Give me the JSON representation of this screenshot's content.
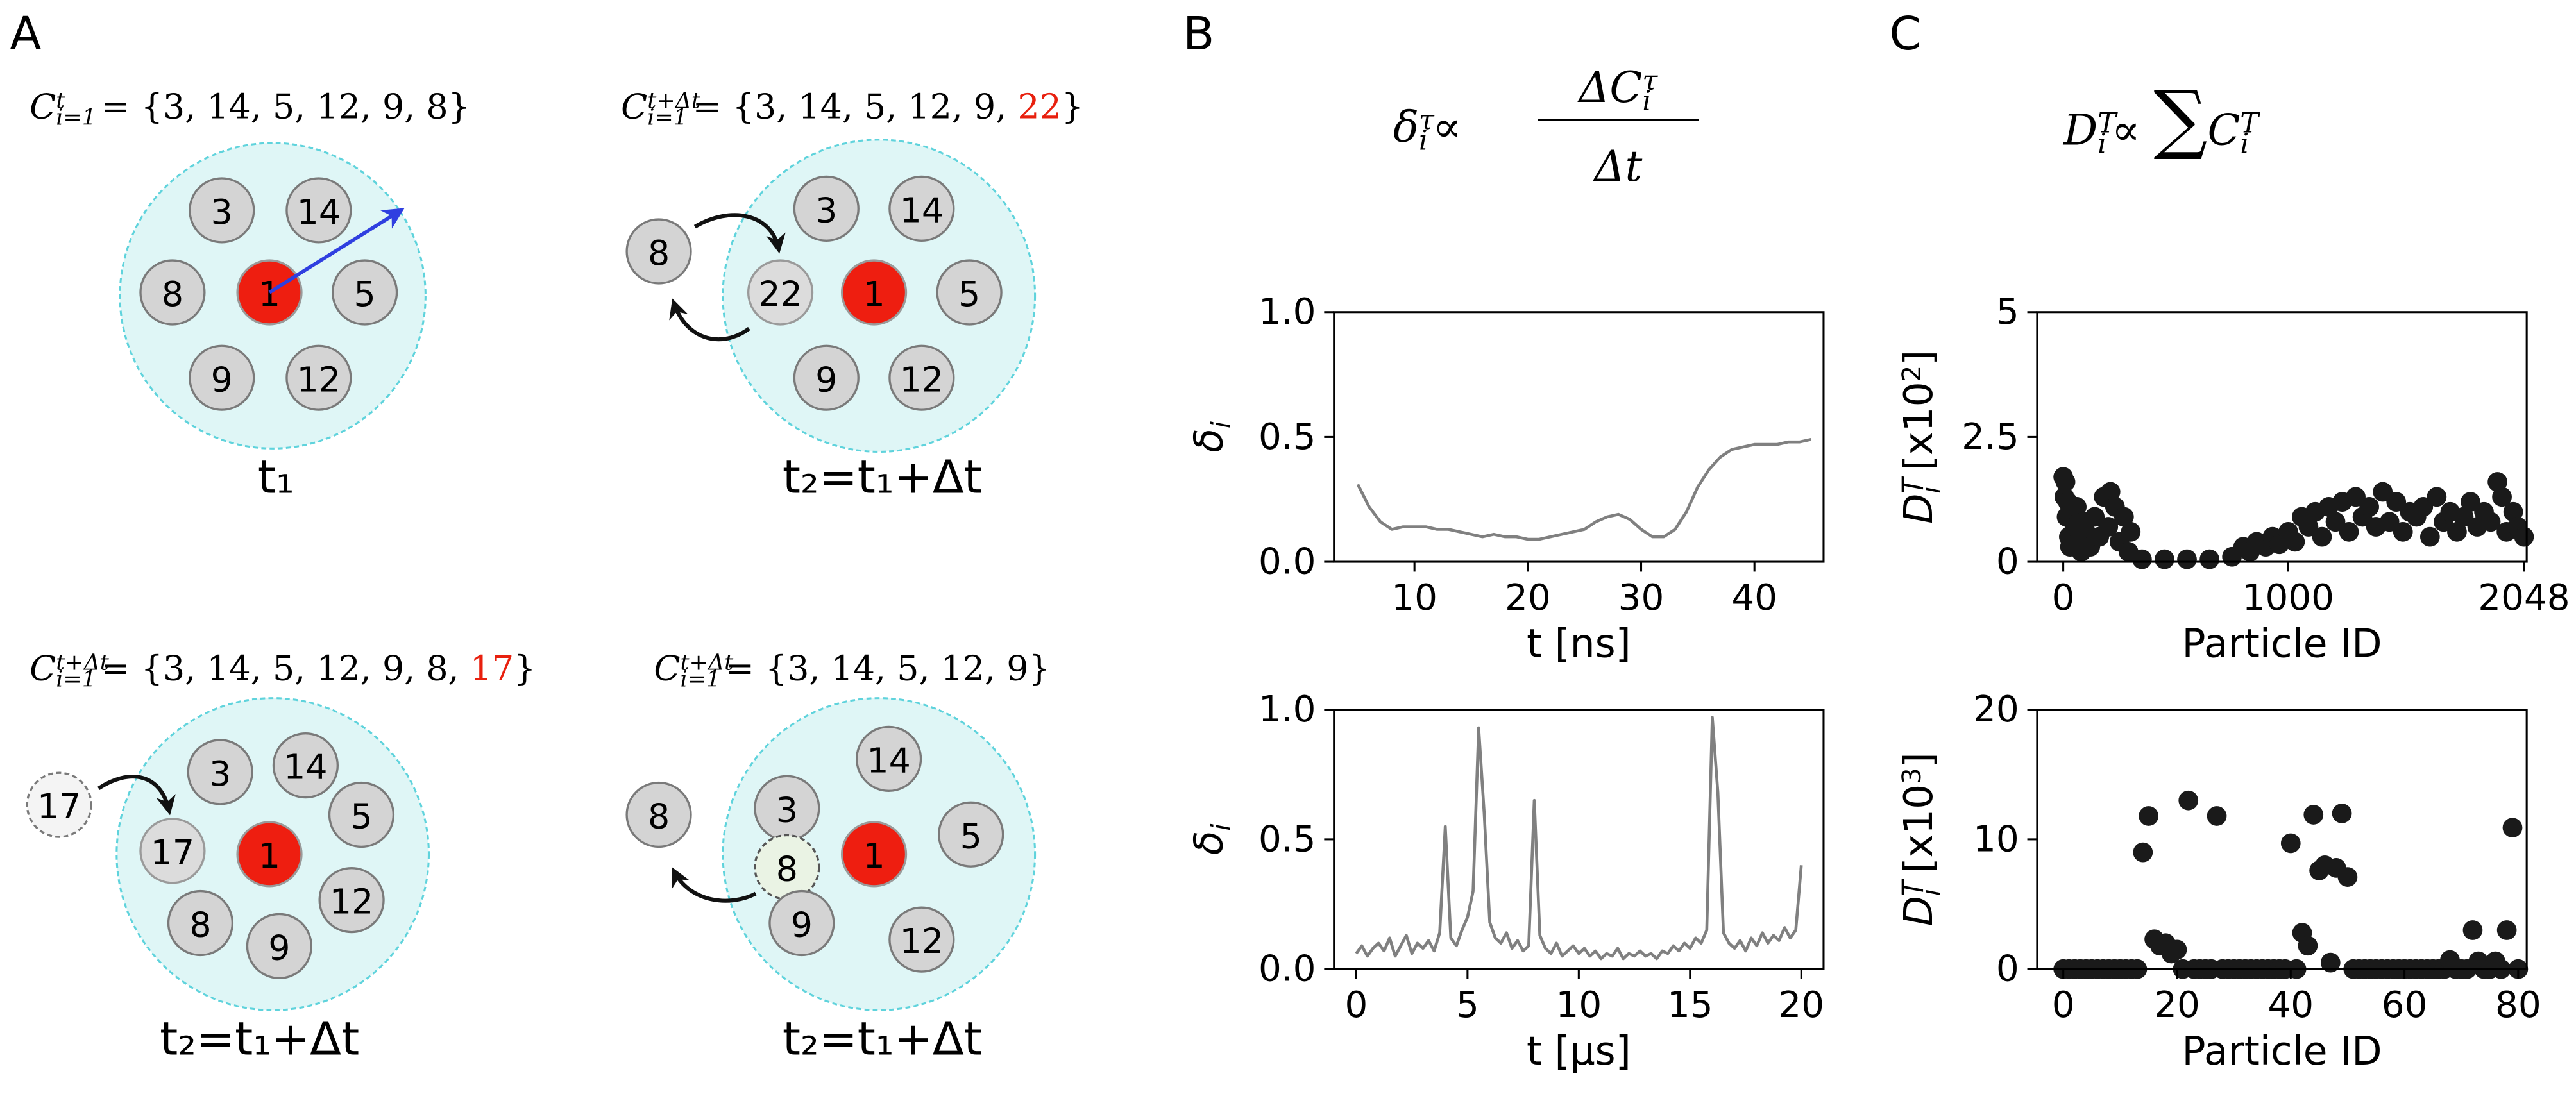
{
  "panel_labels": [
    "A",
    "B",
    "C"
  ],
  "diagrams": [
    {
      "formula": {
        "symbol": "C",
        "sup": "t",
        "sub": "i=1",
        "set": "= {3, 14, 5, 12, 9, 8}"
      },
      "nodes": [
        {
          "label": "3"
        },
        {
          "label": "14"
        },
        {
          "label": "8"
        },
        {
          "label": "1"
        },
        {
          "label": "5"
        },
        {
          "label": "9"
        },
        {
          "label": "12"
        }
      ],
      "caption": "t₁"
    },
    {
      "formula": {
        "symbol": "C",
        "sup": "t+Δt",
        "sub": "i=1",
        "set": "= {3, 14, 5, 12, 9, ",
        "highlight": "22",
        "close": "}"
      },
      "nodes": [
        {
          "label": "3"
        },
        {
          "label": "14"
        },
        {
          "label": "22"
        },
        {
          "label": "1"
        },
        {
          "label": "5"
        },
        {
          "label": "9"
        },
        {
          "label": "12"
        },
        {
          "label": "8"
        }
      ],
      "caption": "t₂=t₁+Δt"
    },
    {
      "formula": {
        "symbol": "C",
        "sup": "t+Δt",
        "sub": "i=1",
        "set": "= {3, 14, 5, 12, 9, 8, ",
        "highlight": "17",
        "close": "}"
      },
      "nodes": [
        {
          "label": "3"
        },
        {
          "label": "14"
        },
        {
          "label": "5"
        },
        {
          "label": "17"
        },
        {
          "label": "1"
        },
        {
          "label": "12"
        },
        {
          "label": "8"
        },
        {
          "label": "9"
        },
        {
          "label": "17"
        }
      ],
      "caption": "t₂=t₁+Δt"
    },
    {
      "formula": {
        "symbol": "C",
        "sup": "t+Δt",
        "sub": "i=1",
        "set": "= {3, 14, 5, 12, 9}"
      },
      "nodes": [
        {
          "label": "14"
        },
        {
          "label": "3"
        },
        {
          "label": "5"
        },
        {
          "label": "8"
        },
        {
          "label": "1"
        },
        {
          "label": "9"
        },
        {
          "label": "12"
        },
        {
          "label": "8"
        }
      ],
      "caption": "t₂=t₁+Δt"
    }
  ],
  "formulas": {
    "B": {
      "lhs": "δ",
      "lhs_sup": "τ",
      "lhs_sub": "i",
      "rel": "∝",
      "num": "ΔC",
      "num_sup": "τ",
      "num_sub": "i",
      "den": "Δt"
    },
    "C": {
      "lhs": "D",
      "lhs_sup": "T",
      "lhs_sub": "i",
      "rel": "∝",
      "op": "∑",
      "rhs": "C",
      "rhs_sup": "T",
      "rhs_sub": "i"
    }
  },
  "chart_data": [
    {
      "type": "line",
      "color": "#808080",
      "xlabel": "t [ns]",
      "ylabel": {
        "base": "δ",
        "sub": "i"
      },
      "xlim": [
        2.9,
        46.1
      ],
      "ylim": [
        0,
        1
      ],
      "xticks": [
        10,
        20,
        30,
        40
      ],
      "yticks": [
        {
          "value": 0,
          "label": "0.0"
        },
        {
          "value": 0.5,
          "label": "0.5"
        },
        {
          "value": 1,
          "label": "1.0"
        }
      ],
      "x": [
        5,
        6,
        7,
        8,
        9,
        10,
        11,
        12,
        13,
        14,
        15,
        16,
        17,
        18,
        19,
        20,
        21,
        22,
        23,
        24,
        25,
        26,
        27,
        28,
        29,
        30,
        31,
        32,
        33,
        34,
        35,
        36,
        37,
        38,
        39,
        40,
        41,
        42,
        43,
        44,
        45
      ],
      "values": [
        0.31,
        0.22,
        0.16,
        0.13,
        0.14,
        0.14,
        0.14,
        0.13,
        0.13,
        0.12,
        0.11,
        0.1,
        0.11,
        0.1,
        0.1,
        0.09,
        0.09,
        0.1,
        0.11,
        0.12,
        0.13,
        0.16,
        0.18,
        0.19,
        0.17,
        0.13,
        0.1,
        0.1,
        0.13,
        0.2,
        0.3,
        0.37,
        0.42,
        0.45,
        0.46,
        0.47,
        0.47,
        0.47,
        0.48,
        0.48,
        0.49
      ]
    },
    {
      "type": "scatter",
      "color": "#1a1a1a",
      "xlabel": "Particle ID",
      "ylabel": {
        "base": "D",
        "sup": "T",
        "sub": "i",
        "unit": " [x10",
        "exp": "2",
        "close": "]"
      },
      "xlim": [
        -116,
        2060
      ],
      "ylim": [
        0,
        5
      ],
      "xticks": [
        0,
        1000,
        2048
      ],
      "yticks": [
        0,
        2.5,
        5
      ],
      "x": [
        0,
        5,
        10,
        15,
        20,
        25,
        30,
        40,
        50,
        60,
        70,
        80,
        90,
        100,
        120,
        140,
        160,
        180,
        200,
        210,
        230,
        250,
        270,
        290,
        300,
        350,
        450,
        550,
        650,
        750,
        800,
        830,
        860,
        900,
        930,
        960,
        1000,
        1030,
        1060,
        1090,
        1120,
        1150,
        1180,
        1210,
        1240,
        1270,
        1300,
        1330,
        1360,
        1390,
        1420,
        1450,
        1480,
        1510,
        1540,
        1570,
        1600,
        1630,
        1660,
        1690,
        1720,
        1750,
        1780,
        1810,
        1840,
        1870,
        1900,
        1930,
        1950,
        1970,
        2000,
        2020,
        2048
      ],
      "values": [
        1.7,
        1.3,
        1.6,
        0.9,
        1.2,
        0.5,
        0.3,
        1.0,
        0.7,
        1.1,
        0.4,
        0.2,
        0.8,
        0.6,
        0.3,
        0.9,
        0.5,
        1.3,
        0.7,
        1.4,
        1.1,
        0.4,
        0.9,
        0.2,
        0.6,
        0.05,
        0.05,
        0.05,
        0.05,
        0.1,
        0.3,
        0.2,
        0.4,
        0.3,
        0.5,
        0.35,
        0.6,
        0.4,
        0.9,
        0.7,
        1.0,
        0.5,
        1.1,
        0.8,
        1.2,
        0.6,
        1.3,
        0.9,
        1.1,
        0.7,
        1.4,
        0.8,
        1.2,
        0.6,
        1.0,
        0.9,
        1.1,
        0.5,
        1.3,
        0.8,
        1.0,
        0.6,
        0.9,
        1.2,
        0.7,
        1.0,
        0.8,
        1.6,
        1.3,
        0.6,
        1.0,
        0.7,
        0.5
      ]
    },
    {
      "type": "line",
      "color": "#808080",
      "xlabel": "t [μs]",
      "ylabel": {
        "base": "δ",
        "sub": "i"
      },
      "xlim": [
        -1,
        21
      ],
      "ylim": [
        0,
        1
      ],
      "xticks": [
        0,
        5,
        10,
        15,
        20
      ],
      "yticks": [
        {
          "value": 0,
          "label": "0.0"
        },
        {
          "value": 0.5,
          "label": "0.5"
        },
        {
          "value": 1,
          "label": "1.0"
        }
      ],
      "x": [
        0,
        0.25,
        0.5,
        0.75,
        1,
        1.25,
        1.5,
        1.75,
        2,
        2.25,
        2.5,
        2.75,
        3,
        3.25,
        3.5,
        3.75,
        4,
        4.25,
        4.5,
        4.75,
        5,
        5.25,
        5.5,
        5.75,
        6,
        6.25,
        6.5,
        6.75,
        7,
        7.25,
        7.5,
        7.75,
        8,
        8.25,
        8.5,
        8.75,
        9,
        9.25,
        9.5,
        9.75,
        10,
        10.25,
        10.5,
        10.75,
        11,
        11.25,
        11.5,
        11.75,
        12,
        12.25,
        12.5,
        12.75,
        13,
        13.25,
        13.5,
        13.75,
        14,
        14.25,
        14.5,
        14.75,
        15,
        15.25,
        15.5,
        15.75,
        16,
        16.25,
        16.5,
        16.75,
        17,
        17.25,
        17.5,
        17.75,
        18,
        18.25,
        18.5,
        18.75,
        19,
        19.25,
        19.5,
        19.75,
        20
      ],
      "values": [
        0.06,
        0.09,
        0.05,
        0.08,
        0.1,
        0.07,
        0.12,
        0.05,
        0.09,
        0.13,
        0.06,
        0.1,
        0.08,
        0.11,
        0.07,
        0.14,
        0.55,
        0.12,
        0.09,
        0.15,
        0.2,
        0.3,
        0.93,
        0.6,
        0.18,
        0.12,
        0.1,
        0.14,
        0.08,
        0.11,
        0.07,
        0.09,
        0.65,
        0.13,
        0.08,
        0.06,
        0.1,
        0.05,
        0.07,
        0.09,
        0.06,
        0.08,
        0.05,
        0.07,
        0.04,
        0.06,
        0.05,
        0.08,
        0.04,
        0.06,
        0.05,
        0.07,
        0.05,
        0.06,
        0.04,
        0.07,
        0.06,
        0.09,
        0.07,
        0.1,
        0.08,
        0.12,
        0.1,
        0.15,
        0.97,
        0.68,
        0.14,
        0.1,
        0.08,
        0.11,
        0.07,
        0.12,
        0.09,
        0.14,
        0.1,
        0.13,
        0.11,
        0.16,
        0.12,
        0.15,
        0.4
      ]
    },
    {
      "type": "scatter",
      "color": "#1a1a1a",
      "xlabel": "Particle ID",
      "ylabel": {
        "base": "D",
        "sup": "T",
        "sub": "i",
        "unit": " [x10",
        "exp": "3",
        "close": "]"
      },
      "xlim": [
        -4.6,
        81.5
      ],
      "ylim": [
        0,
        20
      ],
      "xticks": [
        0,
        20,
        40,
        60,
        80
      ],
      "yticks": [
        0,
        10,
        20
      ],
      "x": [
        0,
        1,
        2,
        3,
        4,
        5,
        6,
        7,
        8,
        9,
        10,
        11,
        12,
        13,
        14,
        15,
        16,
        17,
        18,
        19,
        20,
        21,
        22,
        23,
        24,
        25,
        26,
        27,
        28,
        29,
        30,
        31,
        32,
        33,
        34,
        35,
        36,
        37,
        38,
        39,
        40,
        41,
        42,
        43,
        44,
        45,
        46,
        47,
        48,
        49,
        50,
        51,
        52,
        53,
        54,
        55,
        56,
        57,
        58,
        59,
        60,
        61,
        62,
        63,
        64,
        65,
        66,
        67,
        68,
        69,
        70,
        71,
        72,
        73,
        74,
        75,
        76,
        77,
        78,
        79,
        80
      ],
      "values": [
        0,
        0,
        0,
        0,
        0,
        0,
        0,
        0,
        0,
        0,
        0,
        0,
        0,
        0,
        9,
        11.8,
        2.3,
        1.8,
        2,
        1.2,
        1.5,
        0,
        13,
        0,
        0,
        0,
        0,
        11.8,
        0,
        0,
        0,
        0,
        0,
        0,
        0,
        0,
        0,
        0,
        0,
        0,
        9.7,
        0,
        2.8,
        1.8,
        11.9,
        7.6,
        8,
        0.5,
        7.8,
        12,
        7.1,
        0,
        0,
        0,
        0,
        0,
        0,
        0,
        0,
        0,
        0,
        0,
        0,
        0,
        0,
        0,
        0,
        0,
        0.7,
        0,
        0,
        0,
        3,
        0.6,
        0,
        0,
        0.6,
        0,
        3,
        10.9,
        0
      ]
    }
  ]
}
